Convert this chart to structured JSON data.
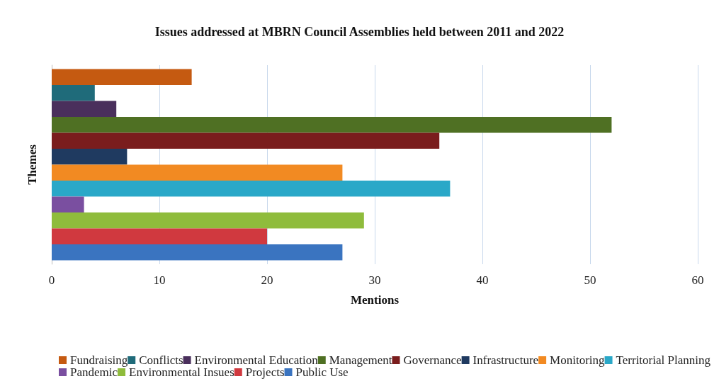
{
  "chart_data": {
    "type": "bar",
    "orientation": "horizontal",
    "title": "Issues addressed at MBRN Council Assemblies held between 2011 and 2022",
    "xlabel": "Mentions",
    "ylabel": "Themes",
    "categories": [
      null
    ],
    "series": [
      {
        "name": "Fundraising",
        "color": "#c55a11",
        "values": [
          13
        ]
      },
      {
        "name": "Conflicts",
        "color": "#1f6b7a",
        "values": [
          4
        ]
      },
      {
        "name": "Environmental Education",
        "color": "#4a2f5c",
        "values": [
          6
        ]
      },
      {
        "name": "Management",
        "color": "#4f7023",
        "values": [
          52
        ]
      },
      {
        "name": "Governance",
        "color": "#7a1d1d",
        "values": [
          36
        ]
      },
      {
        "name": "Infrastructure",
        "color": "#1f3a60",
        "values": [
          7
        ]
      },
      {
        "name": "Monitoring",
        "color": "#f28a22",
        "values": [
          27
        ]
      },
      {
        "name": "Territorial Planning",
        "color": "#2aa8c8",
        "values": [
          37
        ]
      },
      {
        "name": "Pandemic",
        "color": "#7a4fa0",
        "values": [
          3
        ]
      },
      {
        "name": "Environmental Insues",
        "color": "#8fbc3c",
        "values": [
          29
        ]
      },
      {
        "name": "Projects",
        "color": "#d0393f",
        "values": [
          20
        ]
      },
      {
        "name": "Public Use",
        "color": "#3a74c0",
        "values": [
          27
        ]
      }
    ],
    "xlim": [
      0,
      60
    ],
    "xticks": [
      0,
      10,
      20,
      30,
      40,
      50,
      60
    ],
    "grid": "x",
    "legend": "bottom"
  }
}
